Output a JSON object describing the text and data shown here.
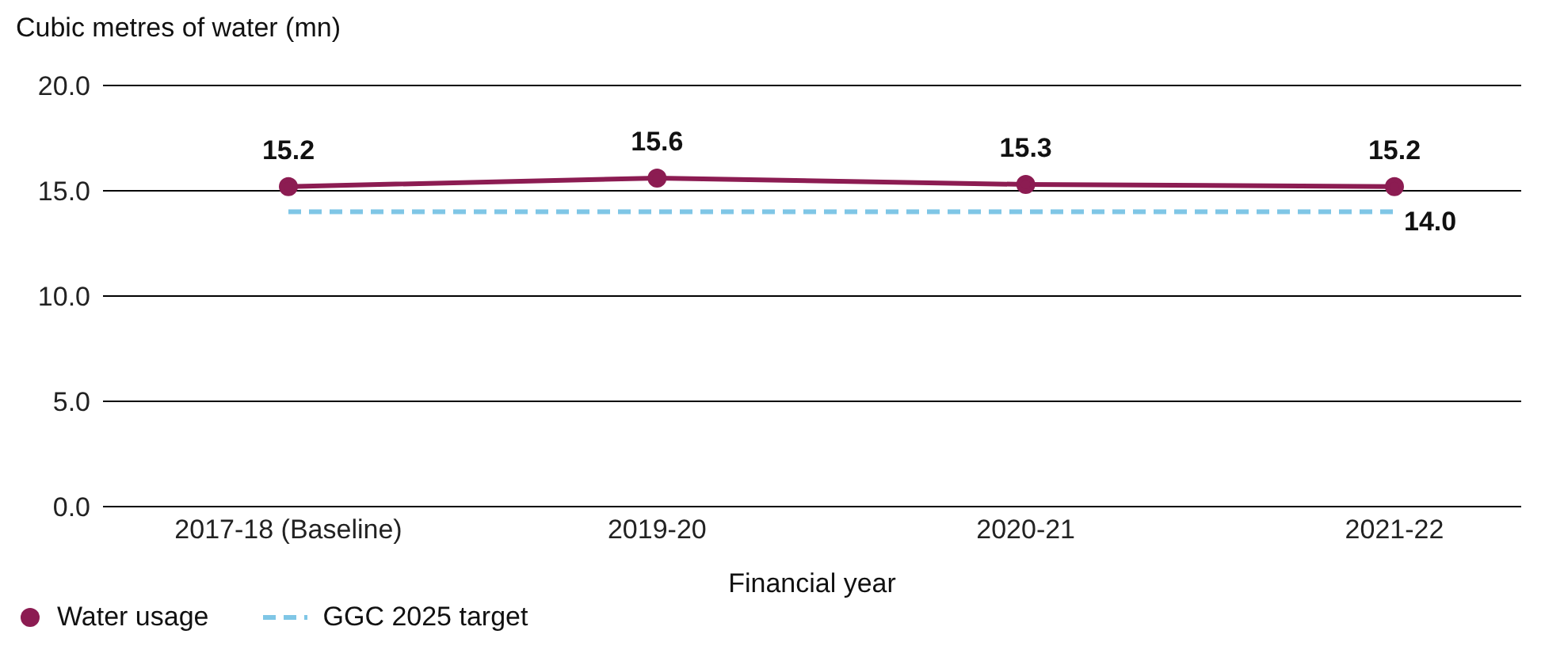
{
  "chart_data": {
    "type": "line",
    "ylabel": "Cubic metres of water (mn)",
    "xlabel": "Financial year",
    "categories": [
      "2017-18 (Baseline)",
      "2019-20",
      "2020-21",
      "2021-22"
    ],
    "series": [
      {
        "name": "Water usage",
        "color": "#8c1c52",
        "values": [
          15.2,
          15.6,
          15.3,
          15.2
        ],
        "value_labels": [
          "15.2",
          "15.6",
          "15.3",
          "15.2"
        ],
        "marker": "circle",
        "line_style": "solid"
      },
      {
        "name": "GGC 2025 target",
        "color": "#7fc6e6",
        "values": [
          14.0,
          14.0,
          14.0,
          14.0
        ],
        "value_labels": [
          null,
          null,
          null,
          "14.0"
        ],
        "marker": "none",
        "line_style": "dashed"
      }
    ],
    "ylim": [
      0,
      20
    ],
    "yticks": [
      {
        "value": 0,
        "label": "0.0"
      },
      {
        "value": 5,
        "label": "5.0"
      },
      {
        "value": 10,
        "label": "10.0"
      },
      {
        "value": 15,
        "label": "15.0"
      },
      {
        "value": 20,
        "label": "20.0"
      }
    ],
    "grid": "y",
    "legend": "bottom left"
  }
}
